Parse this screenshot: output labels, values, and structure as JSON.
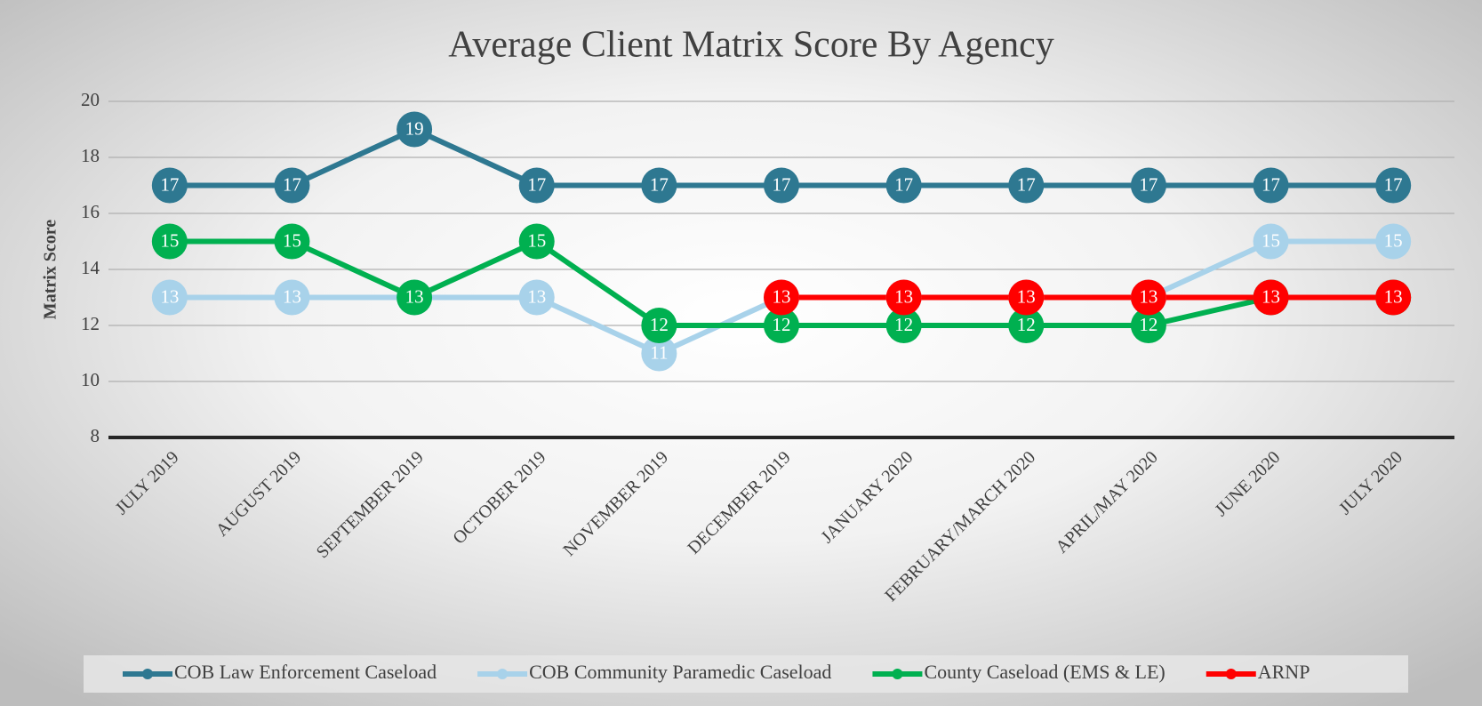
{
  "chart_data": {
    "type": "line",
    "title": "Average Client Matrix Score By Agency",
    "y_label": "Matrix Score",
    "categories": [
      "JULY 2019",
      "AUGUST 2019",
      "SEPTEMBER 2019",
      "OCTOBER 2019",
      "NOVEMBER 2019",
      "DECEMBER 2019",
      "JANUARY 2020",
      "FEBRUARY/MARCH 2020",
      "APRIL/MAY 2020",
      "JUNE 2020",
      "JULY 2020"
    ],
    "series": [
      {
        "name": "COB Law Enforcement Caseload",
        "color": "#2e7891",
        "values": [
          17,
          17,
          19,
          17,
          17,
          17,
          17,
          17,
          17,
          17,
          17
        ]
      },
      {
        "name": "COB Community Paramedic Caseload",
        "color": "#a8d2ea",
        "values": [
          13,
          13,
          13,
          13,
          11,
          13,
          13,
          13,
          13,
          15,
          15
        ]
      },
      {
        "name": "County Caseload (EMS & LE)",
        "color": "#00b050",
        "values": [
          15,
          15,
          13,
          15,
          12,
          12,
          12,
          12,
          12,
          13,
          13
        ]
      },
      {
        "name": "ARNP",
        "color": "#ff0000",
        "values": [
          null,
          null,
          null,
          null,
          null,
          13,
          13,
          13,
          13,
          13,
          13
        ]
      }
    ],
    "ylim": [
      8,
      20
    ],
    "yticks": [
      8,
      10,
      12,
      14,
      16,
      18,
      20
    ],
    "grid": true,
    "legend": "bottom"
  }
}
